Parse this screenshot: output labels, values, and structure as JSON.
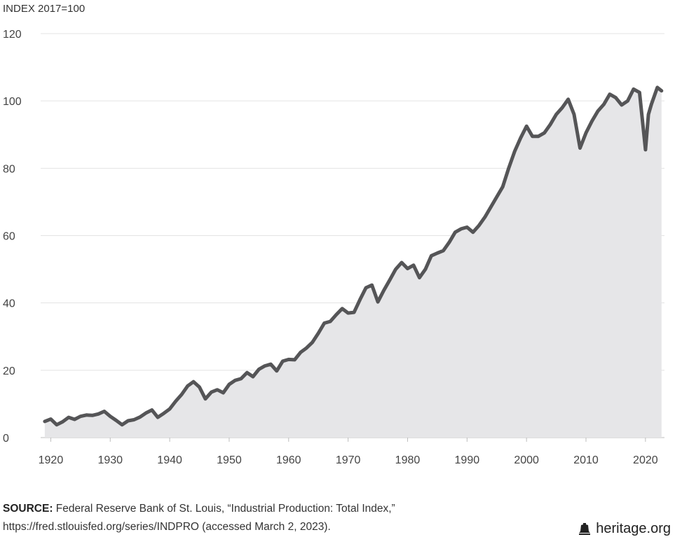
{
  "chart_data": {
    "type": "area",
    "unit_label": "INDEX 2017=100",
    "title": "",
    "xlabel": "",
    "ylabel": "",
    "xlim": [
      1918.3,
      2023.2
    ],
    "ylim": [
      0,
      120
    ],
    "grid": true,
    "y_ticks": [
      "0",
      "20",
      "40",
      "60",
      "80",
      "100",
      "120"
    ],
    "x_ticks": [
      "1920",
      "1930",
      "1940",
      "1950",
      "1960",
      "1970",
      "1980",
      "1990",
      "2000",
      "2010",
      "2020"
    ],
    "series": [
      {
        "points": [
          [
            1919.0,
            4.8
          ],
          [
            1920.0,
            5.5
          ],
          [
            1921.0,
            3.8
          ],
          [
            1922.0,
            4.7
          ],
          [
            1923.0,
            6.0
          ],
          [
            1924.0,
            5.4
          ],
          [
            1925.0,
            6.3
          ],
          [
            1926.0,
            6.7
          ],
          [
            1927.0,
            6.6
          ],
          [
            1928.0,
            7.0
          ],
          [
            1929.0,
            7.8
          ],
          [
            1930.0,
            6.3
          ],
          [
            1931.0,
            5.1
          ],
          [
            1932.0,
            3.8
          ],
          [
            1933.0,
            5.0
          ],
          [
            1934.0,
            5.3
          ],
          [
            1935.0,
            6.1
          ],
          [
            1936.0,
            7.3
          ],
          [
            1937.0,
            8.2
          ],
          [
            1938.0,
            6.0
          ],
          [
            1939.0,
            7.2
          ],
          [
            1940.0,
            8.5
          ],
          [
            1941.0,
            10.8
          ],
          [
            1942.0,
            12.8
          ],
          [
            1943.0,
            15.3
          ],
          [
            1944.0,
            16.6
          ],
          [
            1945.0,
            15.0
          ],
          [
            1946.0,
            11.5
          ],
          [
            1947.0,
            13.5
          ],
          [
            1948.0,
            14.2
          ],
          [
            1949.0,
            13.3
          ],
          [
            1950.0,
            15.8
          ],
          [
            1951.0,
            17.0
          ],
          [
            1952.0,
            17.5
          ],
          [
            1953.0,
            19.3
          ],
          [
            1954.0,
            18.1
          ],
          [
            1955.0,
            20.3
          ],
          [
            1956.0,
            21.3
          ],
          [
            1957.0,
            21.8
          ],
          [
            1958.0,
            19.8
          ],
          [
            1959.0,
            22.7
          ],
          [
            1960.0,
            23.2
          ],
          [
            1961.0,
            23.1
          ],
          [
            1962.0,
            25.3
          ],
          [
            1963.0,
            26.6
          ],
          [
            1964.0,
            28.3
          ],
          [
            1965.0,
            31.0
          ],
          [
            1966.0,
            34.0
          ],
          [
            1967.0,
            34.5
          ],
          [
            1968.0,
            36.5
          ],
          [
            1969.0,
            38.3
          ],
          [
            1970.0,
            37.0
          ],
          [
            1971.0,
            37.2
          ],
          [
            1972.0,
            41.0
          ],
          [
            1973.0,
            44.5
          ],
          [
            1974.0,
            45.3
          ],
          [
            1975.0,
            40.3
          ],
          [
            1976.0,
            43.7
          ],
          [
            1977.0,
            46.8
          ],
          [
            1978.0,
            50.0
          ],
          [
            1979.0,
            52.0
          ],
          [
            1980.0,
            50.2
          ],
          [
            1981.0,
            51.2
          ],
          [
            1982.0,
            47.5
          ],
          [
            1983.0,
            50.0
          ],
          [
            1984.0,
            54.0
          ],
          [
            1985.0,
            54.8
          ],
          [
            1986.0,
            55.5
          ],
          [
            1987.0,
            58.0
          ],
          [
            1988.0,
            61.0
          ],
          [
            1989.0,
            62.0
          ],
          [
            1990.0,
            62.5
          ],
          [
            1991.0,
            61.0
          ],
          [
            1992.0,
            63.0
          ],
          [
            1993.0,
            65.5
          ],
          [
            1994.0,
            68.5
          ],
          [
            1995.0,
            71.5
          ],
          [
            1996.0,
            74.5
          ],
          [
            1997.0,
            80.0
          ],
          [
            1998.0,
            85.0
          ],
          [
            1999.0,
            89.0
          ],
          [
            2000.0,
            92.5
          ],
          [
            2001.0,
            89.5
          ],
          [
            2002.0,
            89.5
          ],
          [
            2003.0,
            90.5
          ],
          [
            2004.0,
            93.0
          ],
          [
            2005.0,
            96.0
          ],
          [
            2006.0,
            98.0
          ],
          [
            2007.0,
            100.5
          ],
          [
            2008.0,
            96.0
          ],
          [
            2009.0,
            86.0
          ],
          [
            2010.0,
            90.5
          ],
          [
            2011.0,
            94.0
          ],
          [
            2012.0,
            97.0
          ],
          [
            2013.0,
            99.0
          ],
          [
            2014.0,
            102.0
          ],
          [
            2015.0,
            101.0
          ],
          [
            2016.0,
            98.8
          ],
          [
            2017.0,
            100.0
          ],
          [
            2018.0,
            103.5
          ],
          [
            2019.0,
            102.5
          ],
          [
            2020.0,
            85.5
          ],
          [
            2020.5,
            96.0
          ],
          [
            2021.0,
            99.0
          ],
          [
            2022.0,
            104.0
          ],
          [
            2022.7,
            103.0
          ]
        ]
      }
    ]
  },
  "source": {
    "label": "SOURCE:",
    "line1": "Federal Reserve Bank of St. Louis, “Industrial Production: Total Index,”",
    "line2": "https://fred.stlouisfed.org/series/INDPRO (accessed March 2, 2023)."
  },
  "brand": {
    "text": "heritage.org",
    "icon": "liberty-bell-icon"
  }
}
